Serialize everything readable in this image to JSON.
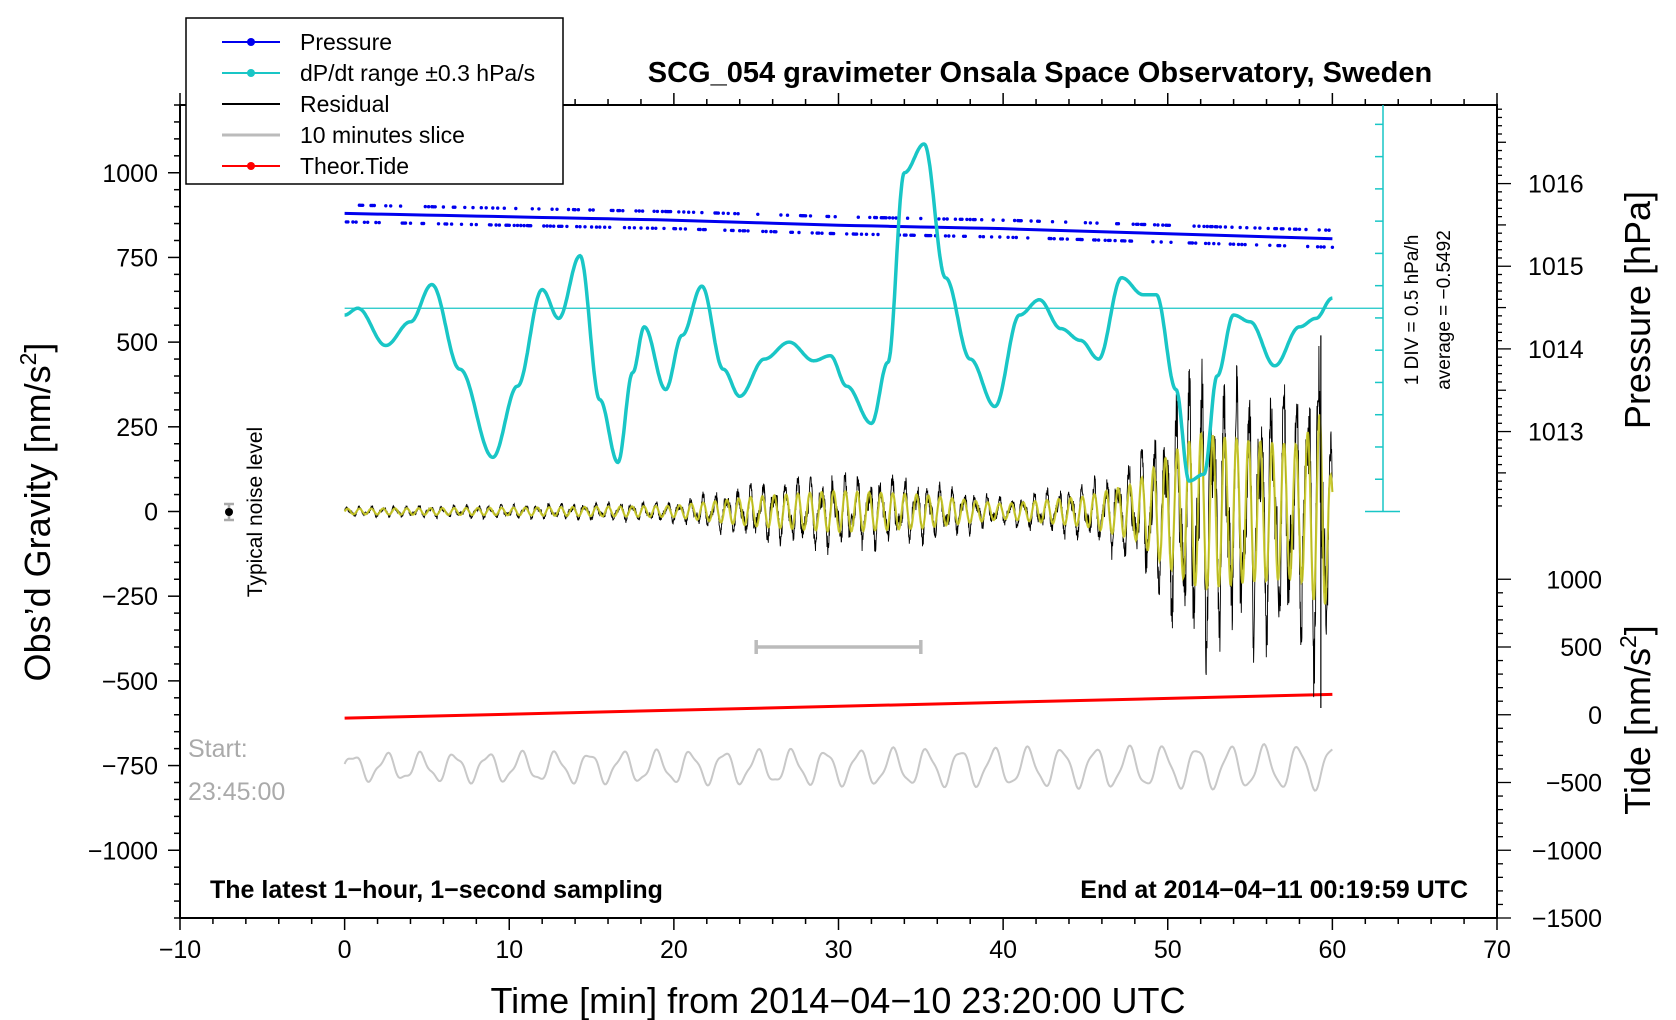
{
  "chart_data": {
    "type": "line",
    "title": "SCG_054 gravimeter Onsala Space Observatory, Sweden",
    "xlabel": "Time [min] from 2014−04−10 23:20:00 UTC",
    "ylabel_left": "Obs’d Gravity [nm/s²]",
    "ylabel_right_top": "Pressure [hPa]",
    "ylabel_right_bottom": "Tide [nm/s²]",
    "xlim": [
      -10,
      70
    ],
    "ylim": [
      -1200,
      1200
    ],
    "x_ticks": [
      -10,
      0,
      10,
      20,
      30,
      40,
      50,
      60,
      70
    ],
    "x_tick_labels": [
      "−10",
      "0",
      "10",
      "20",
      "30",
      "40",
      "50",
      "60",
      "70"
    ],
    "y_ticks": [
      1000,
      750,
      500,
      250,
      0,
      -250,
      -500,
      -750,
      -1000
    ],
    "y_tick_labels": [
      "1000",
      "750",
      "500",
      "250",
      "0",
      "−250",
      "−500",
      "−750",
      "−1000"
    ],
    "pressure_axis": {
      "label": "Pressure [hPa]",
      "ticks": [
        1013,
        1014,
        1015,
        1016
      ],
      "tick_labels": [
        "1013",
        "1014",
        "1015",
        "1016"
      ],
      "gravity_equiv": [
        236,
        480,
        724,
        968
      ]
    },
    "tide_axis": {
      "label": "Tide [nm/s²]",
      "ticks": [
        1000,
        500,
        0,
        -500,
        -1000,
        -1500
      ],
      "tick_labels": [
        "1000",
        "500",
        "0",
        "−500",
        "−1000",
        "−1500"
      ],
      "gravity_equiv": [
        -200,
        -400,
        -600,
        -800,
        -1000,
        -1200
      ]
    },
    "series": [
      {
        "name": "Pressure",
        "color": "#0000ee",
        "x": [
          0,
          10,
          20,
          30,
          40,
          50,
          60
        ],
        "values": [
          880,
          870,
          860,
          845,
          835,
          820,
          805
        ]
      },
      {
        "name": "dP/dt range ±0.3 hPa/s",
        "color": "#19c6c6",
        "x": [
          0,
          0.8,
          2.5,
          4,
          5.3,
          7,
          9,
          10.5,
          12,
          13,
          14.3,
          15.5,
          16.6,
          17.5,
          18.2,
          19.5,
          20.5,
          21.7,
          23,
          24,
          25.5,
          27,
          28.5,
          29.5,
          30.5,
          32,
          33,
          34,
          35.2,
          36.5,
          38,
          39.5,
          41,
          42.2,
          43.5,
          44.7,
          45.8,
          47.2,
          48.5,
          49.3,
          50.5,
          51.3,
          52.2,
          53,
          54,
          55,
          56.5,
          58,
          59,
          60
        ],
        "values": [
          580,
          600,
          490,
          560,
          670,
          420,
          160,
          370,
          655,
          570,
          755,
          330,
          145,
          410,
          545,
          360,
          520,
          665,
          420,
          340,
          450,
          500,
          445,
          460,
          370,
          260,
          440,
          1000,
          1085,
          690,
          450,
          310,
          580,
          625,
          540,
          505,
          450,
          690,
          640,
          640,
          360,
          90,
          110,
          400,
          580,
          560,
          430,
          545,
          570,
          630
        ]
      },
      {
        "name": "Residual",
        "color": "#000000",
        "x": [
          0,
          10,
          20,
          25,
          30,
          35,
          40,
          45,
          48,
          50,
          52,
          55,
          58,
          59.5,
          60
        ],
        "values": [
          15,
          20,
          30,
          80,
          110,
          90,
          40,
          80,
          150,
          300,
          420,
          380,
          360,
          560,
          120
        ]
      },
      {
        "name": "10 minutes slice",
        "color": "#bbbbbb",
        "x": [
          25,
          35
        ],
        "values": [
          -400,
          -400
        ]
      },
      {
        "name": "Theor.Tide",
        "color": "#ff0000",
        "x": [
          0,
          60
        ],
        "values": [
          -610,
          -540
        ]
      }
    ],
    "legend": [
      "Pressure",
      "dP/dt range ±0.3 hPa/s",
      "Residual",
      "10 minutes slice",
      "Theor.Tide"
    ],
    "legend_position": "top-left",
    "annotations": {
      "noise_label": "Typical noise level",
      "start_label": "Start:",
      "start_time": "23:45:00",
      "div_label": "1 DIV = 0.5 hPa/h",
      "average_label": "average = −0.5492",
      "footer_left": "The latest 1−hour, 1−second sampling",
      "footer_right": "End at 2014−04−11 00:19:59 UTC"
    }
  },
  "colors": {
    "pressure": "#0000ee",
    "dpdt": "#19c6c6",
    "residual": "#000000",
    "filtered": "#c8c820",
    "slice": "#bbbbbb",
    "tide": "#ff0000"
  }
}
